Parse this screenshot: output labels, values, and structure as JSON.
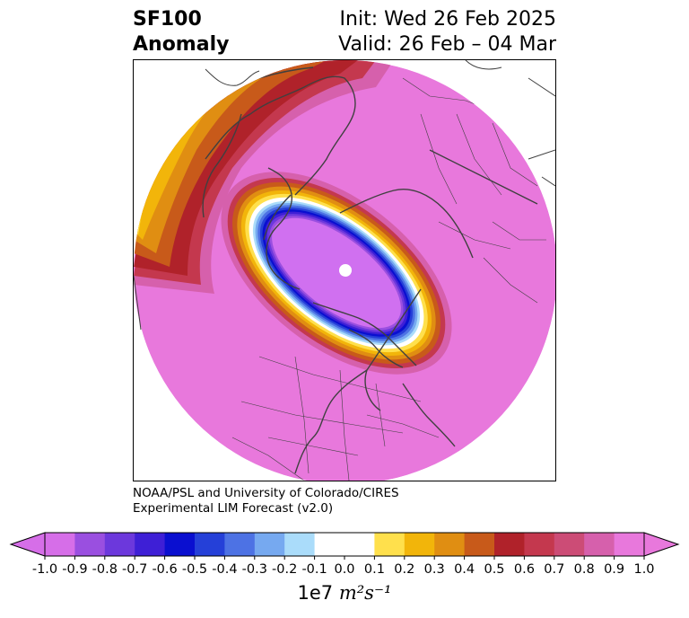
{
  "title": {
    "product_line1": "SF100",
    "product_line2": "Anomaly",
    "init": "Init: Wed 26 Feb 2025",
    "valid": "Valid: 26 Feb – 04 Mar"
  },
  "credit": {
    "line1": "NOAA/PSL and University of Colorado/CIRES",
    "line2": "Experimental LIM Forecast (v2.0)"
  },
  "colorbar": {
    "levels": [
      -1.0,
      -0.9,
      -0.8,
      -0.7,
      -0.6,
      -0.5,
      -0.4,
      -0.3,
      -0.2,
      -0.1,
      0.0,
      0.1,
      0.2,
      0.3,
      0.4,
      0.5,
      0.6,
      0.7,
      0.8,
      0.9,
      1.0
    ],
    "tick_labels": [
      "-1.0",
      "-0.9",
      "-0.8",
      "-0.7",
      "-0.6",
      "-0.5",
      "-0.4",
      "-0.3",
      "-0.2",
      "-0.1",
      "0.0",
      "0.1",
      "0.2",
      "0.3",
      "0.4",
      "0.5",
      "0.6",
      "0.7",
      "0.8",
      "0.9",
      "1.0"
    ],
    "colors": [
      "#d66ee8",
      "#9a4fe0",
      "#6c38dc",
      "#3e1fd6",
      "#0a0fd0",
      "#2540d8",
      "#4d72e4",
      "#76a9f0",
      "#aadcfa",
      "#ffffff",
      "#ffffff",
      "#ffe04c",
      "#f2b50a",
      "#e08e12",
      "#c85a1a",
      "#b0222a",
      "#c4384e",
      "#cc4c76",
      "#d660ac",
      "#e878dc"
    ],
    "under_color": "#d66ee8",
    "over_color": "#e878dc",
    "unit_prefix": "1e7 ",
    "unit_math": "m²s⁻¹"
  },
  "map": {
    "projection": "north-polar-stereographic",
    "background_field_color": "#e878dc",
    "negative_core_color": "#d070f0",
    "coastline_color": "#404040"
  }
}
